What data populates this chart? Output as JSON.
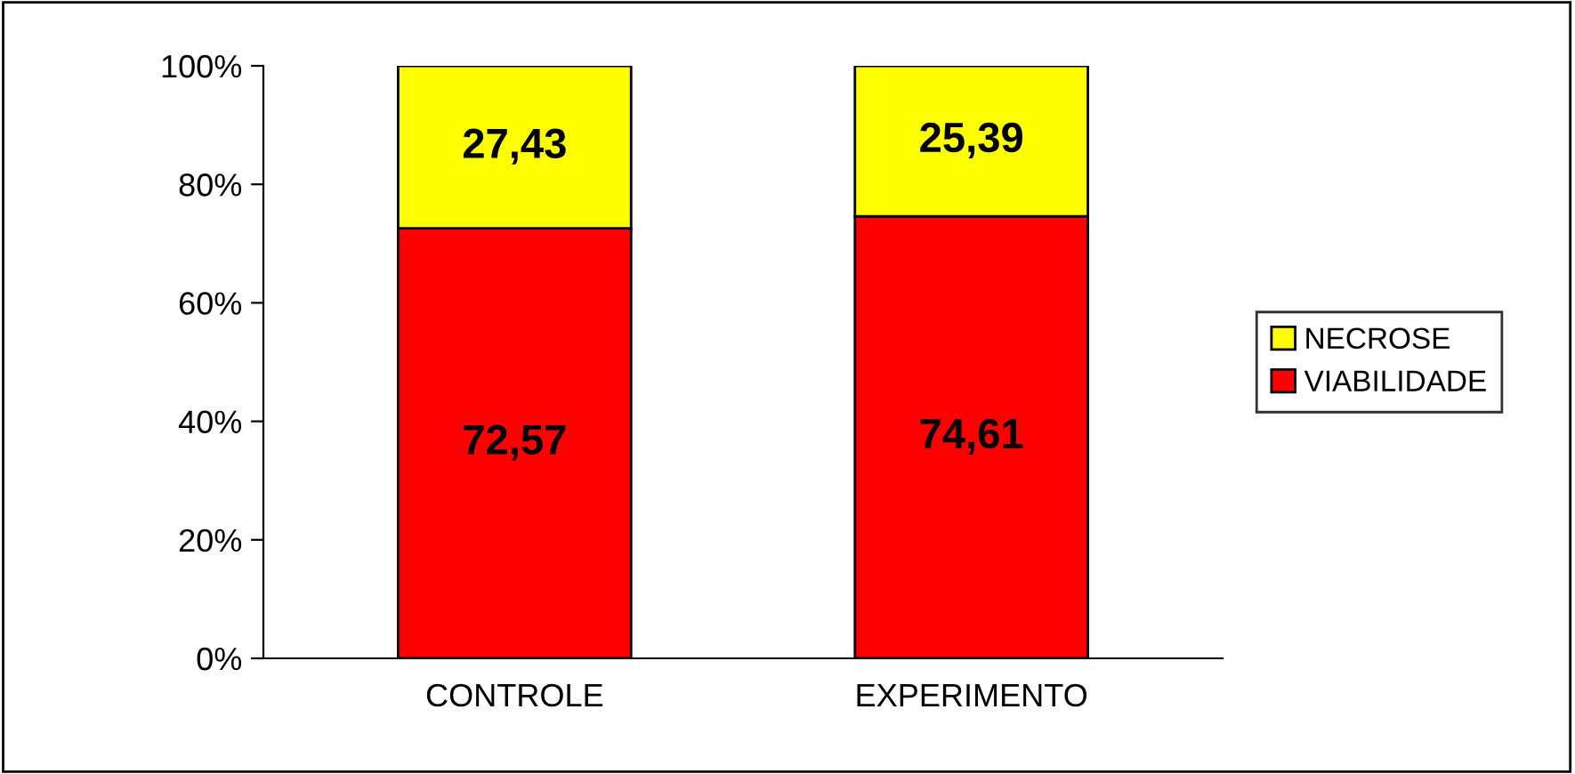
{
  "chart_data": {
    "type": "bar",
    "stacked": true,
    "categories": [
      "CONTROLE",
      "EXPERIMENTO"
    ],
    "series": [
      {
        "name": "VIABILIDADE",
        "color": "#ff0000",
        "values": [
          72.57,
          74.61
        ],
        "value_labels": [
          "72,57",
          "74,61"
        ]
      },
      {
        "name": "NECROSE",
        "color": "#ffff00",
        "values": [
          27.43,
          25.39
        ],
        "value_labels": [
          "27,43",
          "25,39"
        ]
      }
    ],
    "ylim": [
      0,
      100
    ],
    "yticks": [
      {
        "value": 0,
        "label": "0%"
      },
      {
        "value": 20,
        "label": "20%"
      },
      {
        "value": 40,
        "label": "40%"
      },
      {
        "value": 60,
        "label": "60%"
      },
      {
        "value": 80,
        "label": "80%"
      },
      {
        "value": 100,
        "label": "100%"
      }
    ],
    "grid": false,
    "legend": "right"
  }
}
